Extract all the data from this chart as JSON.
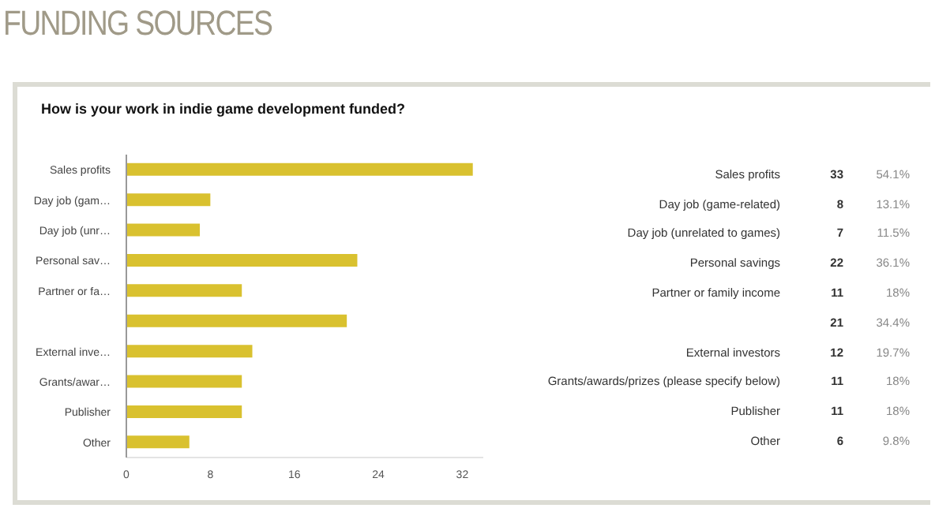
{
  "chart_data": [
    {
      "type": "bar",
      "orientation": "horizontal",
      "title": "FUNDING SOURCES",
      "subtitle": "How is your work in indie game development funded?",
      "categories": [
        "Sales profits",
        "Day job (gam…",
        "Day job (unr…",
        "Personal sav…",
        "Partner or fa…",
        null,
        "External inve…",
        "Grants/awar…",
        "Publisher",
        "Other"
      ],
      "values": [
        33,
        8,
        7,
        22,
        11,
        21,
        12,
        11,
        11,
        6
      ],
      "color": "#d9c12f",
      "xlim": [
        0,
        34
      ],
      "xticks": [
        0,
        8,
        16,
        24,
        32
      ]
    },
    {
      "type": "other",
      "categories": [
        "Sales profits",
        "Day job (game-related)",
        "Day job (unrelated to games)",
        "Personal savings",
        "Partner or family income",
        null,
        "External investors",
        "Grants/awards/prizes (please specify below)",
        "Publisher",
        "Other"
      ],
      "values": [
        33,
        8,
        7,
        22,
        11,
        21,
        12,
        11,
        11,
        6
      ],
      "data_labels": true,
      "annotations": [
        "54.1%",
        "13.1%",
        "11.5%",
        "36.1%",
        "18%",
        "34.4%",
        "19.7%",
        "18%",
        "18%",
        "9.8%"
      ]
    }
  ]
}
